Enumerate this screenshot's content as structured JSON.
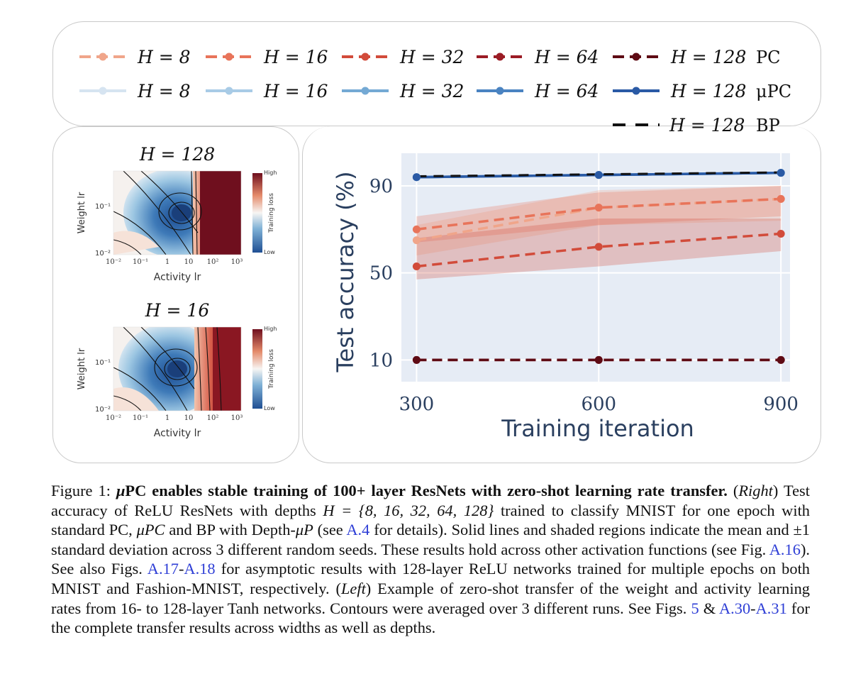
{
  "legend": {
    "pc_label": "PC",
    "mupc_label": "μPC",
    "bp_label": "BP",
    "pc_items": [
      {
        "label": "H = 8",
        "color": "#f0a58a"
      },
      {
        "label": "H = 16",
        "color": "#e8745a"
      },
      {
        "label": "H = 32",
        "color": "#d24b3a"
      },
      {
        "label": "H = 64",
        "color": "#9b1c25"
      },
      {
        "label": "H = 128",
        "color": "#5e0b14"
      }
    ],
    "mupc_items": [
      {
        "label": "H = 8",
        "color": "#d6e4f1"
      },
      {
        "label": "H = 16",
        "color": "#a8cbe6"
      },
      {
        "label": "H = 32",
        "color": "#74a9d4"
      },
      {
        "label": "H = 64",
        "color": "#4a83c1"
      },
      {
        "label": "H = 128",
        "color": "#2a5aa5"
      }
    ],
    "bp_item": {
      "label": "H = 128",
      "color": "#111111"
    }
  },
  "heatmaps": [
    {
      "title": "H = 128",
      "ylabel": "Weight lr",
      "xlabel": "Activity lr",
      "x_ticks": [
        "10⁻²",
        "10⁻¹",
        "1",
        "10",
        "10²",
        "10³"
      ],
      "y_ticks": [
        "10⁻¹",
        "10⁻²"
      ],
      "colorbar_label": "Training loss",
      "colorbar_high": "High",
      "colorbar_low": "Low"
    },
    {
      "title": "H = 16",
      "ylabel": "Weight lr",
      "xlabel": "Activity lr",
      "x_ticks": [
        "10⁻²",
        "10⁻¹",
        "1",
        "10",
        "10²",
        "10³"
      ],
      "y_ticks": [
        "10⁻¹",
        "10⁻²"
      ],
      "colorbar_label": "Training loss",
      "colorbar_high": "High",
      "colorbar_low": "Low"
    }
  ],
  "chart_data": {
    "type": "line",
    "title": "",
    "xlabel": "Training iteration",
    "ylabel": "Test accuracy (%)",
    "x": [
      300,
      600,
      900
    ],
    "x_ticks": [
      300,
      600,
      900
    ],
    "y_ticks": [
      10,
      50,
      90
    ],
    "xlim": [
      275,
      915
    ],
    "ylim": [
      0,
      105
    ],
    "grid": true,
    "series": [
      {
        "name": "PC H=8",
        "style": "dashed",
        "color": "#f0a58a",
        "values": [
          65,
          80,
          84
        ],
        "std_lower": [
          58,
          72,
          74
        ],
        "std_upper": [
          72,
          88,
          90
        ]
      },
      {
        "name": "PC H=16",
        "style": "dashed",
        "color": "#e8745a",
        "values": [
          70,
          80,
          84
        ],
        "std_lower": [
          64,
          72,
          76
        ],
        "std_upper": [
          76,
          87,
          90
        ]
      },
      {
        "name": "PC H=32",
        "style": "dashed",
        "color": "#d24b3a",
        "values": [
          53,
          62,
          68
        ],
        "std_lower": [
          47,
          53,
          60
        ],
        "std_upper": [
          66,
          75,
          75
        ]
      },
      {
        "name": "PC H=64",
        "style": "dashed",
        "color": "#9b1c25",
        "values": [
          10,
          10,
          10
        ]
      },
      {
        "name": "PC H=128",
        "style": "dashed",
        "color": "#5e0b14",
        "values": [
          10,
          10,
          10
        ]
      },
      {
        "name": "μPC H=8",
        "style": "solid",
        "color": "#d6e4f1",
        "values": [
          94,
          95,
          96
        ]
      },
      {
        "name": "μPC H=16",
        "style": "solid",
        "color": "#a8cbe6",
        "values": [
          94,
          95,
          96
        ]
      },
      {
        "name": "μPC H=32",
        "style": "solid",
        "color": "#74a9d4",
        "values": [
          94,
          95,
          96
        ]
      },
      {
        "name": "μPC H=64",
        "style": "solid",
        "color": "#4a83c1",
        "values": [
          94,
          95,
          96
        ]
      },
      {
        "name": "μPC H=128",
        "style": "solid",
        "color": "#2a5aa5",
        "values": [
          94,
          95,
          96
        ]
      },
      {
        "name": "BP H=128",
        "style": "dashed",
        "color": "#111111",
        "values": [
          94.4,
          95.3,
          96.2
        ]
      }
    ]
  },
  "caption": {
    "fig_label": "Figure 1:",
    "mu": "μ",
    "bold_title": "PC enables stable training of 100+ layer ResNets with zero-shot learning rate transfer.",
    "right_label": "Right",
    "text1": " Test accuracy of ReLU ResNets with depths ",
    "depths": "H = {8, 16, 32, 64, 128}",
    "text2": " trained to classify MNIST for one epoch with standard PC, ",
    "mupc": "μPC",
    "text3": " and BP with Depth-",
    "mup": "μP",
    "text4": " (see ",
    "link_a4": "A.4",
    "text5": " for details). Solid lines and shaded regions indicate the mean and ±1 standard deviation across 3 different random seeds. These results hold across other activation functions (see Fig. ",
    "link_a16": "A.16",
    "text6": "). See also Figs. ",
    "link_a17": "A.17",
    "dash1": "-",
    "link_a18": "A.18",
    "text7": " for asymptotic results with 128-layer ReLU networks trained for multiple epochs on both MNIST and Fashion-MNIST, respectively. ",
    "left_label": "Left",
    "text8": " Example of zero-shot transfer of the weight and activity learning rates from 16- to 128-layer Tanh networks. Contours were averaged over 3 different runs. See Figs. ",
    "link_5": "5",
    "amp": "&",
    "link_a30": "A.30",
    "dash2": "-",
    "link_a31": "A.31",
    "text9": " for the complete transfer results across widths as well as depths."
  }
}
